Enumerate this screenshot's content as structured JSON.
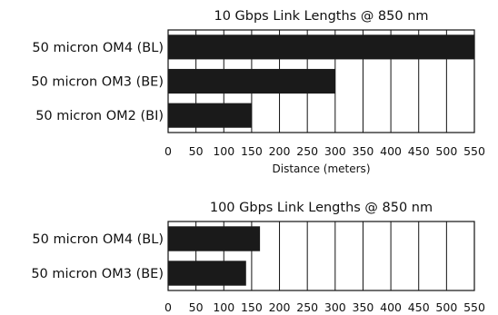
{
  "chart_data": [
    {
      "type": "bar",
      "orientation": "horizontal",
      "title": "10 Gbps Link Lengths @ 850 nm",
      "xlabel": "Distance (meters)",
      "ylabel": "",
      "categories": [
        "50 micron OM4 (BL)",
        "50 micron OM3 (BE)",
        "50 micron OM2 (BI)"
      ],
      "values": [
        550,
        300,
        150
      ],
      "xlim": [
        0,
        550
      ],
      "ticks": [
        "0",
        "50",
        "100",
        "150",
        "200",
        "250",
        "300",
        "350",
        "400",
        "450",
        "500",
        "550"
      ],
      "grid": true,
      "bar_color": "#1a1a1a"
    },
    {
      "type": "bar",
      "orientation": "horizontal",
      "title": "100 Gbps Link Lengths @ 850 nm",
      "xlabel": "",
      "ylabel": "",
      "categories": [
        "50 micron OM4 (BL)",
        "50 micron OM3 (BE)"
      ],
      "values": [
        165,
        140
      ],
      "xlim": [
        0,
        550
      ],
      "ticks": [
        "0",
        "50",
        "100",
        "150",
        "200",
        "250",
        "300",
        "350",
        "400",
        "450",
        "500",
        "550"
      ],
      "grid": true,
      "bar_color": "#1a1a1a"
    }
  ]
}
